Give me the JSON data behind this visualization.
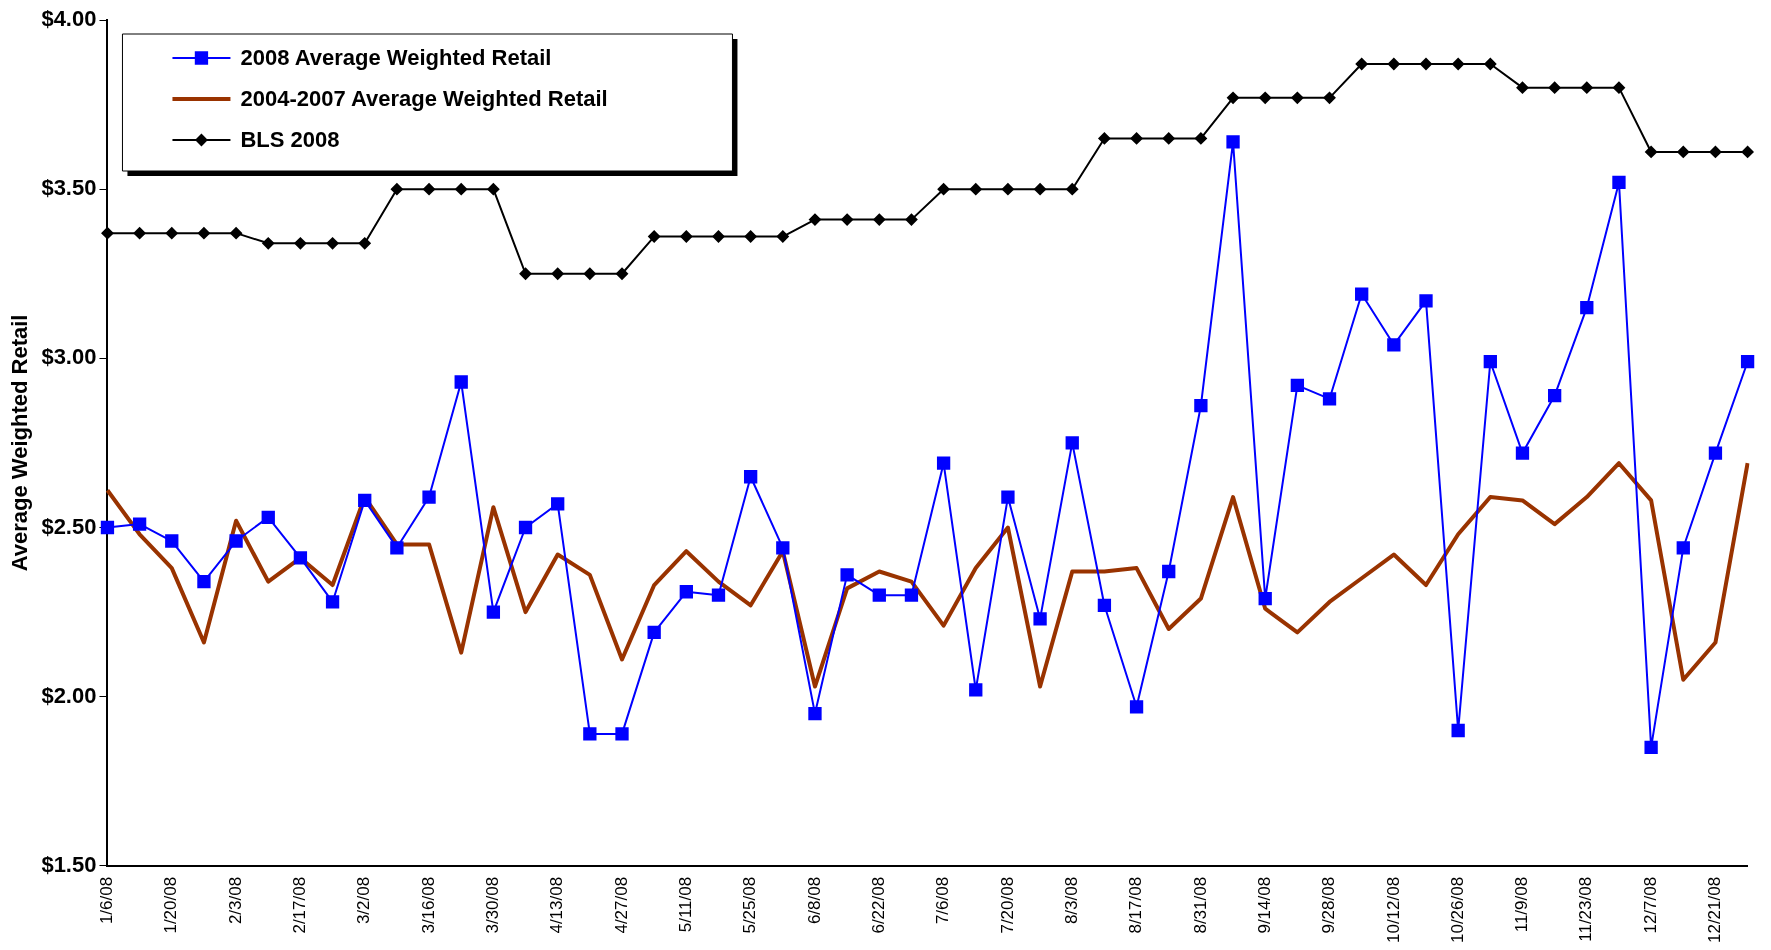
{
  "chart_data": {
    "type": "line",
    "ylabel": "Average Weighted Retail",
    "categories": [
      "1/6/08",
      null,
      "1/20/08",
      null,
      "2/3/08",
      null,
      "2/17/08",
      null,
      "3/2/08",
      null,
      "3/16/08",
      null,
      "3/30/08",
      null,
      "4/13/08",
      null,
      "4/27/08",
      null,
      "5/11/08",
      null,
      "5/25/08",
      null,
      "6/8/08",
      null,
      "6/22/08",
      null,
      "7/6/08",
      null,
      "7/20/08",
      null,
      "8/3/08",
      null,
      "8/17/08",
      null,
      "8/31/08",
      null,
      "9/14/08",
      null,
      "9/28/08",
      null,
      "10/12/08",
      null,
      "10/26/08",
      null,
      "11/9/08",
      null,
      "11/23/08",
      null,
      "12/7/08",
      null,
      "12/21/08",
      null
    ],
    "series": [
      {
        "name": "2008 Average Weighted Retail",
        "color": "#0000ff",
        "marker": "square",
        "values": [
          2.5,
          2.51,
          2.46,
          2.34,
          2.46,
          2.53,
          2.41,
          2.28,
          2.58,
          2.44,
          2.59,
          2.93,
          2.25,
          2.5,
          2.57,
          1.89,
          1.89,
          2.19,
          2.31,
          2.3,
          2.65,
          2.44,
          1.95,
          2.36,
          2.3,
          2.3,
          2.69,
          2.02,
          2.59,
          2.23,
          2.75,
          2.27,
          1.97,
          2.37,
          2.86,
          3.64,
          2.29,
          2.92,
          2.88,
          3.19,
          3.04,
          3.17,
          1.9,
          2.99,
          2.72,
          2.89,
          3.15,
          3.52,
          1.85,
          2.44,
          2.72,
          2.99
        ]
      },
      {
        "name": "2004-2007 Average Weighted Retail",
        "color": "#993300",
        "marker": "none",
        "values": [
          2.61,
          2.48,
          2.38,
          2.16,
          2.52,
          2.34,
          2.41,
          2.33,
          2.59,
          2.45,
          2.45,
          2.13,
          2.56,
          2.25,
          2.42,
          2.36,
          2.11,
          2.33,
          2.43,
          2.34,
          2.27,
          2.43,
          2.03,
          2.32,
          2.37,
          2.34,
          2.21,
          2.38,
          2.5,
          2.03,
          2.37,
          2.37,
          2.38,
          2.2,
          2.29,
          2.59,
          2.26,
          2.19,
          2.28,
          2.35,
          2.42,
          2.33,
          2.48,
          2.59,
          2.58,
          2.51,
          2.59,
          2.69,
          2.58,
          2.05,
          2.16,
          2.69
        ]
      },
      {
        "name": "BLS 2008",
        "color": "#000000",
        "marker": "diamond",
        "values": [
          3.37,
          3.37,
          3.37,
          3.37,
          3.37,
          3.34,
          3.34,
          3.34,
          3.34,
          3.5,
          3.5,
          3.5,
          3.5,
          3.25,
          3.25,
          3.25,
          3.25,
          3.36,
          3.36,
          3.36,
          3.36,
          3.36,
          3.41,
          3.41,
          3.41,
          3.41,
          3.5,
          3.5,
          3.5,
          3.5,
          3.5,
          3.65,
          3.65,
          3.65,
          3.65,
          3.77,
          3.77,
          3.77,
          3.77,
          3.87,
          3.87,
          3.87,
          3.87,
          3.87,
          3.8,
          3.8,
          3.8,
          3.8,
          3.61,
          3.61,
          3.61,
          3.61
        ]
      }
    ],
    "ylim": [
      1.5,
      4
    ],
    "yticks": [
      {
        "value": 1.5,
        "label": "$1.50"
      },
      {
        "value": 2,
        "label": "$2.00"
      },
      {
        "value": 2.5,
        "label": "$2.50"
      },
      {
        "value": 3,
        "label": "$3.00"
      },
      {
        "value": 3.5,
        "label": "$3.50"
      },
      {
        "value": 4,
        "label": "$4.00"
      }
    ],
    "grid": false,
    "legend": "top left"
  }
}
